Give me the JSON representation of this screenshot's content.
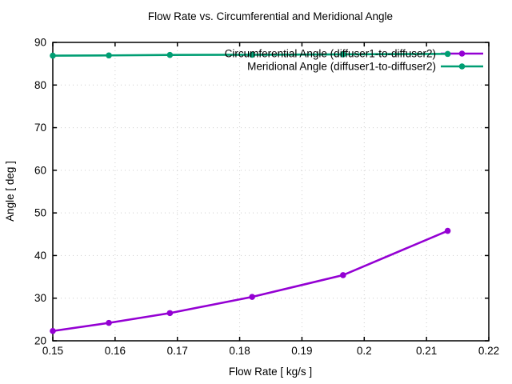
{
  "chart_data": {
    "type": "line",
    "title": "Flow Rate vs. Circumferential and Meridional Angle",
    "xlabel": "Flow Rate [ kg/s ]",
    "ylabel": "Angle [ deg ]",
    "xlim": [
      0.15,
      0.22
    ],
    "ylim": [
      20,
      90
    ],
    "grid": true,
    "legend_position": "top-right-inside",
    "x_ticks": {
      "values": [
        0.15,
        0.16,
        0.17,
        0.18,
        0.19,
        0.2,
        0.21,
        0.22
      ],
      "labels": [
        "0.15",
        "0.16",
        "0.17",
        "0.18",
        "0.19",
        "0.2",
        "0.21",
        "0.22"
      ]
    },
    "y_ticks": {
      "values": [
        20,
        30,
        40,
        50,
        60,
        70,
        80,
        90
      ],
      "labels": [
        "20",
        "30",
        "40",
        "50",
        "60",
        "70",
        "80",
        "90"
      ]
    },
    "series": [
      {
        "id": "circumferential-angle",
        "name": "Circumferential Angle (diffuser1-to-diffuser2)",
        "color": "#9400d3",
        "marker": "circle",
        "x": [
          0.15,
          0.159,
          0.1688,
          0.182,
          0.1966,
          0.2134
        ],
        "y": [
          22.3,
          24.2,
          26.5,
          30.3,
          35.4,
          45.8
        ]
      },
      {
        "id": "meridional-angle",
        "name": "Meridional Angle (diffuser1-to-diffuser2)",
        "color": "#009e73",
        "marker": "circle",
        "x": [
          0.15,
          0.159,
          0.1688,
          0.182,
          0.1966,
          0.2134
        ],
        "y": [
          86.9,
          86.95,
          87.05,
          87.1,
          87.2,
          87.3
        ]
      }
    ]
  }
}
